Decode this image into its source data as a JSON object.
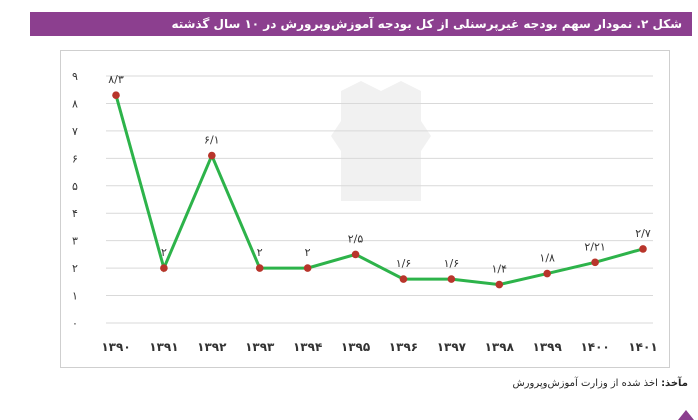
{
  "caption": {
    "text": "شکل ۲. نمودار سهم بودجه غیرپرسنلی از کل بودجه آموزش‌وپرورش در ۱۰ سال گذشته"
  },
  "source": {
    "label": "مآخذ:",
    "text": "اخذ شده از وزارت آموزش‌وپرورش"
  },
  "colors": {
    "caption_bg": "#8c3f8f",
    "line": "#2db34a",
    "marker": "#b8352b",
    "grid": "#d9d9d9"
  },
  "chart_data": {
    "type": "line",
    "x": [
      "۱۳۹۰",
      "۱۳۹۱",
      "۱۳۹۲",
      "۱۳۹۳",
      "۱۳۹۴",
      "۱۳۹۵",
      "۱۳۹۶",
      "۱۳۹۷",
      "۱۳۹۸",
      "۱۳۹۹",
      "۱۴۰۰",
      "۱۴۰۱"
    ],
    "values": [
      8.3,
      2,
      6.1,
      2,
      2,
      2.5,
      1.6,
      1.6,
      1.4,
      1.8,
      2.21,
      2.7
    ],
    "data_labels": [
      "۸/۳",
      "۲",
      "۶/۱",
      "۲",
      "۲",
      "۲/۵",
      "۱/۶",
      "۱/۶",
      "۱/۴",
      "۱/۸",
      "۲/۲۱",
      "۲/۷"
    ],
    "y_ticks": [
      "۰",
      "۱",
      "۲",
      "۳",
      "۴",
      "۵",
      "۶",
      "۷",
      "۸",
      "۹"
    ],
    "ylim": [
      0,
      9
    ],
    "grid": true,
    "legend": "none"
  }
}
